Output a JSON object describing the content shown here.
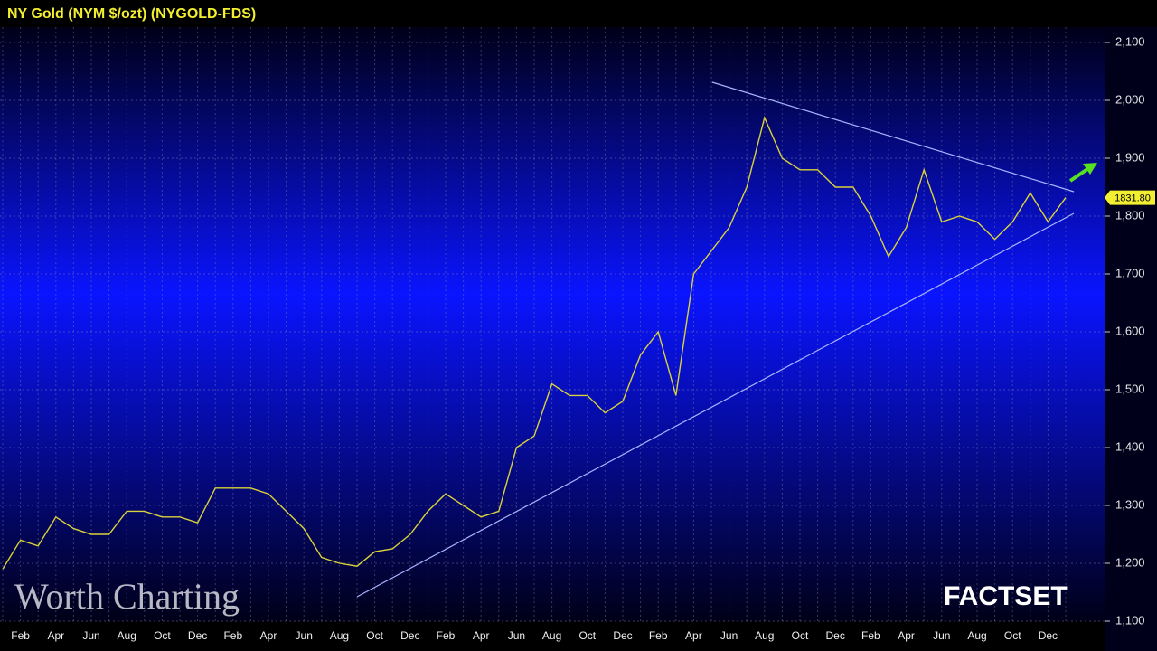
{
  "chart_data": {
    "type": "line",
    "title": "NY Gold (NYM $/ozt) (NYGOLD-FDS)",
    "annotations": [
      "Worth Charting",
      "FACTSET"
    ],
    "categories": [
      null,
      "Feb",
      null,
      "Apr",
      null,
      "Jun",
      null,
      "Aug",
      null,
      "Oct",
      null,
      "Dec",
      null,
      "Feb",
      null,
      "Apr",
      null,
      "Jun",
      null,
      "Aug",
      null,
      "Oct",
      null,
      "Dec",
      null,
      "Feb",
      null,
      "Apr",
      null,
      "Jun",
      null,
      "Aug",
      null,
      "Oct",
      null,
      "Dec",
      null,
      "Feb",
      null,
      "Apr",
      null,
      "Jun",
      null,
      "Aug",
      null,
      "Oct",
      null,
      "Dec",
      null,
      "Feb",
      null,
      "Apr",
      null,
      "Jun",
      null,
      "Aug",
      null,
      "Oct",
      null,
      "Dec",
      null
    ],
    "series": [
      {
        "name": "NY Gold",
        "color": "#d9d23c",
        "values": [
          1190,
          1240,
          1230,
          1280,
          1260,
          1250,
          1250,
          1290,
          1290,
          1280,
          1280,
          1270,
          1330,
          1330,
          1330,
          1320,
          1290,
          1260,
          1210,
          1200,
          1195,
          1220,
          1225,
          1250,
          1290,
          1320,
          1300,
          1280,
          1290,
          1400,
          1420,
          1510,
          1490,
          1490,
          1460,
          1480,
          1560,
          1600,
          1490,
          1700,
          1740,
          1780,
          1850,
          1970,
          1900,
          1880,
          1880,
          1850,
          1850,
          1800,
          1730,
          1780,
          1880,
          1790,
          1800,
          1790,
          1760,
          1790,
          1840,
          1790,
          1831.8
        ],
        "value_labels": [
          null,
          null,
          null,
          null,
          null,
          null,
          null,
          null,
          null,
          null,
          null,
          null,
          null,
          null,
          null,
          null,
          null,
          null,
          null,
          null,
          null,
          null,
          null,
          null,
          null,
          null,
          null,
          null,
          null,
          null,
          null,
          null,
          null,
          null,
          null,
          null,
          null,
          null,
          null,
          null,
          null,
          null,
          null,
          null,
          null,
          null,
          null,
          null,
          null,
          null,
          null,
          null,
          null,
          null,
          null,
          null,
          null,
          null,
          null,
          null,
          "1831.80"
        ]
      }
    ],
    "ylim": [
      1100,
      2100
    ],
    "yticks": [
      {
        "value": 1100,
        "label": "1,100"
      },
      {
        "value": 1200,
        "label": "1,200"
      },
      {
        "value": 1300,
        "label": "1,300"
      },
      {
        "value": 1400,
        "label": "1,400"
      },
      {
        "value": 1500,
        "label": "1,500"
      },
      {
        "value": 1600,
        "label": "1,600"
      },
      {
        "value": 1700,
        "label": "1,700"
      },
      {
        "value": 1800,
        "label": "1,800"
      },
      {
        "value": 1900,
        "label": "1,900"
      },
      {
        "value": 2000,
        "label": "2,000"
      },
      {
        "value": 2100,
        "label": "2,100"
      }
    ],
    "grid": true
  }
}
